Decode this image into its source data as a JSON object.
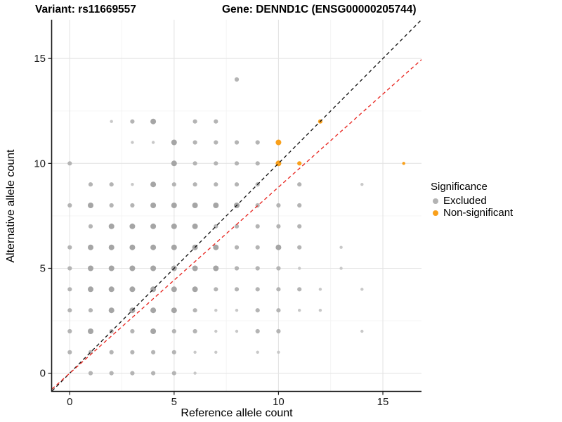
{
  "titles": {
    "variant": "Variant: rs11669557",
    "gene": "Gene: DENND1C (ENSG00000205744)"
  },
  "chart_data": {
    "type": "scatter",
    "xlabel": "Reference allele count",
    "ylabel": "Alternative allele count",
    "xticks": [
      0,
      5,
      10,
      15
    ],
    "yticks": [
      0,
      5,
      10,
      15
    ],
    "xminor": [
      2.5,
      7.5,
      12.5
    ],
    "yminor": [
      2.5,
      7.5,
      12.5
    ],
    "xlim": [
      -0.85,
      16.85
    ],
    "ylim": [
      -0.85,
      16.85
    ],
    "grid": true,
    "legend": {
      "title": "Significance",
      "position": "right",
      "items": [
        {
          "key": "e",
          "label": "Excluded",
          "color": "#B3B3B3"
        },
        {
          "key": "n",
          "label": "Non-significant",
          "color": "#F9A01B"
        }
      ]
    },
    "lines": [
      {
        "name": "identity-line",
        "slope": 1.0,
        "intercept": 0,
        "color": "#141414",
        "style": "dashed"
      },
      {
        "name": "ratio-line",
        "slope": 0.887,
        "intercept": 0,
        "color": "#E8251F",
        "style": "dashed"
      }
    ],
    "points_format": [
      "x",
      "y",
      "size_tier",
      "significance(e=excluded,n=non-significant)"
    ],
    "points": [
      [
        1,
        0,
        2,
        "e"
      ],
      [
        2,
        0,
        2,
        "e"
      ],
      [
        3,
        0,
        2,
        "e"
      ],
      [
        4,
        0,
        2,
        "e"
      ],
      [
        5,
        0,
        2,
        "e"
      ],
      [
        6,
        0,
        1,
        "e"
      ],
      [
        0,
        1,
        2,
        "e"
      ],
      [
        1,
        1,
        2,
        "e"
      ],
      [
        2,
        1,
        2,
        "e"
      ],
      [
        3,
        1,
        2,
        "e"
      ],
      [
        4,
        1,
        2,
        "e"
      ],
      [
        5,
        1,
        2,
        "e"
      ],
      [
        6,
        1,
        1,
        "e"
      ],
      [
        7,
        1,
        1,
        "e"
      ],
      [
        9,
        1,
        1,
        "e"
      ],
      [
        10,
        1,
        1,
        "e"
      ],
      [
        0,
        2,
        2,
        "e"
      ],
      [
        1,
        2,
        3,
        "e"
      ],
      [
        2,
        2,
        2,
        "e"
      ],
      [
        3,
        2,
        2,
        "e"
      ],
      [
        4,
        2,
        3,
        "e"
      ],
      [
        5,
        2,
        2,
        "e"
      ],
      [
        6,
        2,
        2,
        "e"
      ],
      [
        7,
        2,
        1,
        "e"
      ],
      [
        8,
        2,
        1,
        "e"
      ],
      [
        9,
        2,
        2,
        "e"
      ],
      [
        10,
        2,
        2,
        "e"
      ],
      [
        14,
        2,
        1,
        "e"
      ],
      [
        0,
        3,
        2,
        "e"
      ],
      [
        1,
        3,
        2,
        "e"
      ],
      [
        2,
        3,
        3,
        "e"
      ],
      [
        3,
        3,
        3,
        "e"
      ],
      [
        4,
        3,
        3,
        "e"
      ],
      [
        5,
        3,
        3,
        "e"
      ],
      [
        6,
        3,
        2,
        "e"
      ],
      [
        7,
        3,
        1,
        "e"
      ],
      [
        8,
        3,
        1,
        "e"
      ],
      [
        9,
        3,
        2,
        "e"
      ],
      [
        10,
        3,
        2,
        "e"
      ],
      [
        11,
        3,
        1,
        "e"
      ],
      [
        12,
        3,
        1,
        "e"
      ],
      [
        0,
        4,
        2,
        "e"
      ],
      [
        1,
        4,
        3,
        "e"
      ],
      [
        2,
        4,
        3,
        "e"
      ],
      [
        3,
        4,
        3,
        "e"
      ],
      [
        4,
        4,
        3,
        "e"
      ],
      [
        5,
        4,
        3,
        "e"
      ],
      [
        6,
        4,
        3,
        "e"
      ],
      [
        7,
        4,
        2,
        "e"
      ],
      [
        8,
        4,
        2,
        "e"
      ],
      [
        9,
        4,
        2,
        "e"
      ],
      [
        10,
        4,
        2,
        "e"
      ],
      [
        11,
        4,
        2,
        "e"
      ],
      [
        12,
        4,
        1,
        "e"
      ],
      [
        14,
        4,
        1,
        "e"
      ],
      [
        0,
        5,
        2,
        "e"
      ],
      [
        1,
        5,
        3,
        "e"
      ],
      [
        2,
        5,
        3,
        "e"
      ],
      [
        3,
        5,
        3,
        "e"
      ],
      [
        4,
        5,
        3,
        "e"
      ],
      [
        5,
        5,
        3,
        "e"
      ],
      [
        6,
        5,
        3,
        "e"
      ],
      [
        7,
        5,
        3,
        "e"
      ],
      [
        8,
        5,
        2,
        "e"
      ],
      [
        9,
        5,
        2,
        "e"
      ],
      [
        10,
        5,
        2,
        "e"
      ],
      [
        11,
        5,
        1,
        "e"
      ],
      [
        13,
        5,
        1,
        "e"
      ],
      [
        0,
        6,
        2,
        "e"
      ],
      [
        1,
        6,
        3,
        "e"
      ],
      [
        2,
        6,
        3,
        "e"
      ],
      [
        3,
        6,
        3,
        "e"
      ],
      [
        4,
        6,
        3,
        "e"
      ],
      [
        5,
        6,
        3,
        "e"
      ],
      [
        6,
        6,
        3,
        "e"
      ],
      [
        7,
        6,
        3,
        "e"
      ],
      [
        8,
        6,
        2,
        "e"
      ],
      [
        9,
        6,
        2,
        "e"
      ],
      [
        10,
        6,
        3,
        "e"
      ],
      [
        11,
        6,
        2,
        "e"
      ],
      [
        13,
        6,
        1,
        "e"
      ],
      [
        1,
        7,
        2,
        "e"
      ],
      [
        2,
        7,
        3,
        "e"
      ],
      [
        3,
        7,
        3,
        "e"
      ],
      [
        4,
        7,
        3,
        "e"
      ],
      [
        5,
        7,
        3,
        "e"
      ],
      [
        6,
        7,
        3,
        "e"
      ],
      [
        7,
        7,
        2,
        "e"
      ],
      [
        8,
        7,
        2,
        "e"
      ],
      [
        9,
        7,
        2,
        "e"
      ],
      [
        10,
        7,
        2,
        "e"
      ],
      [
        11,
        7,
        2,
        "e"
      ],
      [
        0,
        8,
        2,
        "e"
      ],
      [
        1,
        8,
        3,
        "e"
      ],
      [
        2,
        8,
        2,
        "e"
      ],
      [
        3,
        8,
        2,
        "e"
      ],
      [
        4,
        8,
        3,
        "e"
      ],
      [
        5,
        8,
        3,
        "e"
      ],
      [
        6,
        8,
        3,
        "e"
      ],
      [
        7,
        8,
        3,
        "e"
      ],
      [
        8,
        8,
        3,
        "e"
      ],
      [
        9,
        8,
        2,
        "e"
      ],
      [
        10,
        8,
        2,
        "e"
      ],
      [
        11,
        8,
        2,
        "e"
      ],
      [
        1,
        9,
        2,
        "e"
      ],
      [
        2,
        9,
        2,
        "e"
      ],
      [
        3,
        9,
        1,
        "e"
      ],
      [
        4,
        9,
        3,
        "e"
      ],
      [
        5,
        9,
        2,
        "e"
      ],
      [
        6,
        9,
        2,
        "e"
      ],
      [
        7,
        9,
        2,
        "e"
      ],
      [
        8,
        9,
        2,
        "e"
      ],
      [
        9,
        9,
        2,
        "e"
      ],
      [
        11,
        9,
        2,
        "e"
      ],
      [
        14,
        9,
        1,
        "e"
      ],
      [
        0,
        10,
        2,
        "e"
      ],
      [
        5,
        10,
        3,
        "e"
      ],
      [
        6,
        10,
        2,
        "e"
      ],
      [
        7,
        10,
        2,
        "e"
      ],
      [
        8,
        10,
        2,
        "e"
      ],
      [
        9,
        10,
        2,
        "e"
      ],
      [
        10,
        10,
        3,
        "n"
      ],
      [
        11,
        10,
        2,
        "n"
      ],
      [
        16,
        10,
        1,
        "n"
      ],
      [
        3,
        11,
        1,
        "e"
      ],
      [
        4,
        11,
        1,
        "e"
      ],
      [
        5,
        11,
        3,
        "e"
      ],
      [
        6,
        11,
        2,
        "e"
      ],
      [
        7,
        11,
        2,
        "e"
      ],
      [
        8,
        11,
        2,
        "e"
      ],
      [
        9,
        11,
        2,
        "e"
      ],
      [
        10,
        11,
        3,
        "n"
      ],
      [
        2,
        12,
        1,
        "e"
      ],
      [
        3,
        12,
        2,
        "e"
      ],
      [
        4,
        12,
        3,
        "e"
      ],
      [
        6,
        12,
        2,
        "e"
      ],
      [
        7,
        12,
        2,
        "e"
      ],
      [
        12,
        12,
        2,
        "n"
      ],
      [
        8,
        14,
        2,
        "e"
      ]
    ]
  },
  "colors": {
    "excluded_small": "#C8C8C8",
    "excluded_medium": "#B4B4B4",
    "excluded_large": "#A5A5A5",
    "non_significant": "#F9A01B",
    "identity_line": "#141414",
    "ratio_line": "#E8251F",
    "grid_major": "#E4E4E4",
    "grid_minor": "#F3F3F3",
    "axis_line": "#1A1A1A",
    "tick_label": "#1A1A1A"
  }
}
